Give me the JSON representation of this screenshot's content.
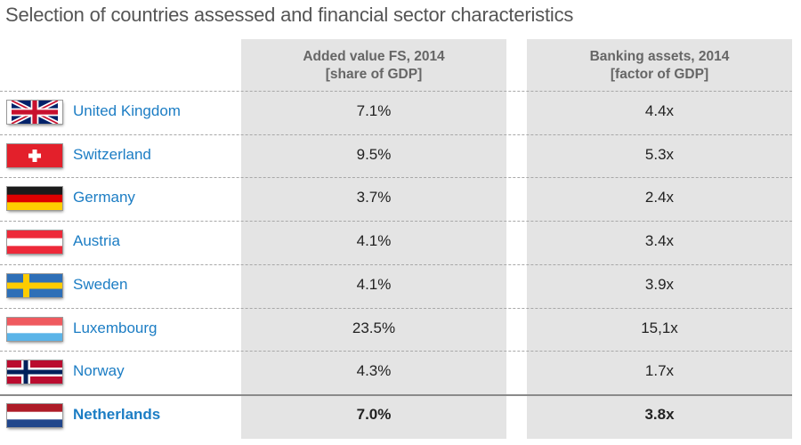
{
  "title": "Selection of countries assessed and financial sector characteristics",
  "chart_data": {
    "type": "table",
    "title": "Selection of countries assessed and financial sector characteristics",
    "columns": [
      {
        "label_line1": "Added value FS, 2014",
        "label_line2": "[share of GDP]"
      },
      {
        "label_line1": "Banking assets, 2014",
        "label_line2": "[factor of GDP]"
      }
    ],
    "rows": [
      {
        "country": "United Kingdom",
        "flag_icon": "uk-flag-icon",
        "added_value": "7.1%",
        "banking_assets": "4.4x",
        "highlight": false
      },
      {
        "country": "Switzerland",
        "flag_icon": "switzerland-flag-icon",
        "added_value": "9.5%",
        "banking_assets": "5.3x",
        "highlight": false
      },
      {
        "country": "Germany",
        "flag_icon": "germany-flag-icon",
        "added_value": "3.7%",
        "banking_assets": "2.4x",
        "highlight": false
      },
      {
        "country": "Austria",
        "flag_icon": "austria-flag-icon",
        "added_value": "4.1%",
        "banking_assets": "3.4x",
        "highlight": false
      },
      {
        "country": "Sweden",
        "flag_icon": "sweden-flag-icon",
        "added_value": "4.1%",
        "banking_assets": "3.9x",
        "highlight": false
      },
      {
        "country": "Luxembourg",
        "flag_icon": "luxembourg-flag-icon",
        "added_value": "23.5%",
        "banking_assets": "15,1x",
        "highlight": false
      },
      {
        "country": "Norway",
        "flag_icon": "norway-flag-icon",
        "added_value": "4.3%",
        "banking_assets": "1.7x",
        "highlight": false
      },
      {
        "country": "Netherlands",
        "flag_icon": "netherlands-flag-icon",
        "added_value": "7.0%",
        "banking_assets": "3.8x",
        "highlight": true
      }
    ]
  },
  "colors": {
    "country_text": "#1c7dc4",
    "column_background": "#e4e4e4",
    "title_text": "#555555"
  }
}
